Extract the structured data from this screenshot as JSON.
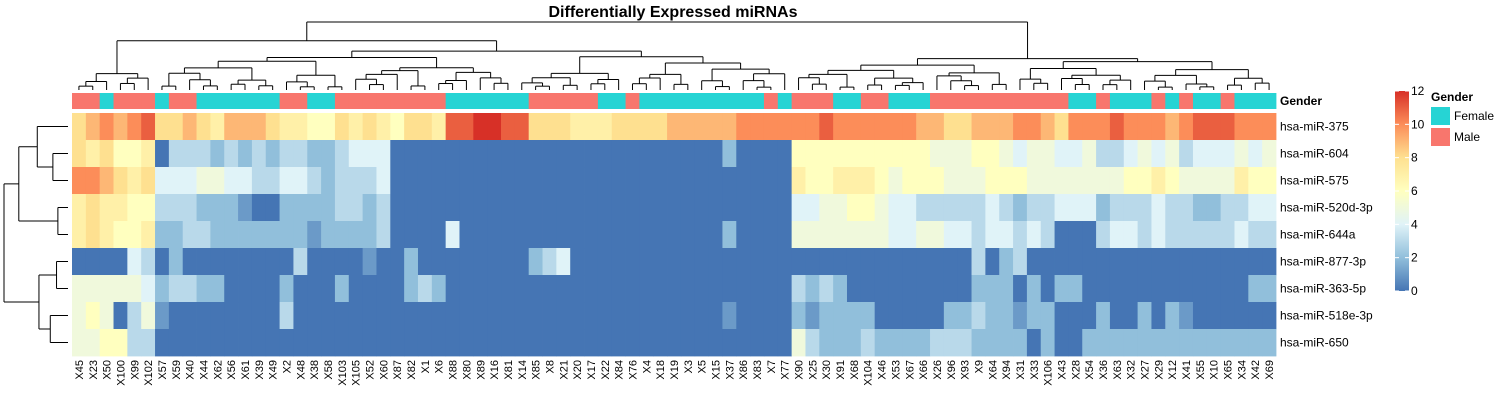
{
  "chart_data": {
    "type": "heatmap",
    "title": "Differentially Expressed miRNAs",
    "columns": [
      "X45",
      "X23",
      "X50",
      "X100",
      "X99",
      "X102",
      "X57",
      "X59",
      "X40",
      "X44",
      "X62",
      "X56",
      "X61",
      "X39",
      "X49",
      "X2",
      "X48",
      "X38",
      "X58",
      "X103",
      "X105",
      "X52",
      "X60",
      "X87",
      "X82",
      "X1",
      "X6",
      "X88",
      "X80",
      "X89",
      "X16",
      "X81",
      "X14",
      "X85",
      "X8",
      "X21",
      "X20",
      "X17",
      "X22",
      "X84",
      "X76",
      "X4",
      "X18",
      "X19",
      "X3",
      "X5",
      "X15",
      "X37",
      "X86",
      "X83",
      "X7",
      "X77",
      "X90",
      "X25",
      "X30",
      "X91",
      "X68",
      "X104",
      "X46",
      "X53",
      "X67",
      "X66",
      "X26",
      "X96",
      "X93",
      "X9",
      "X64",
      "X94",
      "X31",
      "X33",
      "X106",
      "X43",
      "X28",
      "X54",
      "X36",
      "X63",
      "X32",
      "X27",
      "X29",
      "X12",
      "X41",
      "X55",
      "X10",
      "X65",
      "X34",
      "X42",
      "X69"
    ],
    "rows": [
      "hsa-miR-375",
      "hsa-miR-604",
      "hsa-miR-575",
      "hsa-miR-520d-3p",
      "hsa-miR-644a",
      "hsa-miR-877-3p",
      "hsa-miR-363-5p",
      "hsa-miR-518e-3p",
      "hsa-miR-650"
    ],
    "gender": [
      "Male",
      "Male",
      "Female",
      "Male",
      "Male",
      "Male",
      "Female",
      "Male",
      "Male",
      "Female",
      "Female",
      "Female",
      "Female",
      "Female",
      "Female",
      "Male",
      "Male",
      "Female",
      "Female",
      "Male",
      "Male",
      "Male",
      "Male",
      "Male",
      "Male",
      "Male",
      "Male",
      "Female",
      "Female",
      "Female",
      "Female",
      "Female",
      "Female",
      "Male",
      "Male",
      "Male",
      "Male",
      "Male",
      "Female",
      "Female",
      "Male",
      "Female",
      "Female",
      "Female",
      "Female",
      "Female",
      "Female",
      "Female",
      "Female",
      "Female",
      "Male",
      "Female",
      "Male",
      "Male",
      "Male",
      "Female",
      "Female",
      "Male",
      "Male",
      "Female",
      "Female",
      "Female",
      "Male",
      "Male",
      "Male",
      "Male",
      "Male",
      "Male",
      "Male",
      "Male",
      "Male",
      "Male",
      "Female",
      "Female",
      "Male",
      "Female",
      "Female",
      "Female",
      "Male",
      "Female",
      "Male",
      "Female",
      "Female",
      "Male",
      "Female",
      "Female",
      "Female"
    ],
    "values": [
      [
        8,
        9,
        10,
        9,
        10,
        11,
        8,
        8,
        9,
        8,
        7,
        9,
        9,
        9,
        8,
        7,
        7,
        6,
        6,
        8,
        7,
        8,
        7,
        6,
        8,
        8,
        7,
        11,
        11,
        12,
        12,
        11,
        11,
        8,
        8,
        8,
        7,
        7,
        7,
        8,
        8,
        8,
        8,
        9,
        9,
        9,
        9,
        9,
        10,
        10,
        10,
        10,
        10,
        10,
        11,
        10,
        10,
        10,
        10,
        10,
        10,
        9,
        9,
        8,
        8,
        9,
        9,
        9,
        10,
        10,
        9,
        8,
        10,
        10,
        10,
        11,
        10,
        10,
        10,
        9,
        10,
        11,
        11,
        11,
        10,
        10,
        10
      ],
      [
        8,
        7,
        8,
        6,
        6,
        7,
        0,
        3,
        3,
        3,
        2,
        3,
        2,
        3,
        2,
        3,
        3,
        2,
        2,
        3,
        4,
        4,
        4,
        0,
        0,
        0,
        0,
        0,
        0,
        0,
        0,
        0,
        0,
        0,
        0,
        0,
        0,
        0,
        0,
        0,
        0,
        0,
        0,
        0,
        0,
        0,
        0,
        2,
        0,
        0,
        0,
        0,
        6,
        6,
        6,
        6,
        6,
        6,
        6,
        6,
        6,
        6,
        5,
        5,
        5,
        6,
        6,
        5,
        4,
        5,
        5,
        4,
        4,
        5,
        3,
        3,
        4,
        5,
        4,
        5,
        3,
        4,
        4,
        4,
        5,
        4,
        5
      ],
      [
        10,
        10,
        9,
        8,
        7,
        8,
        4,
        4,
        4,
        5,
        5,
        4,
        4,
        3,
        3,
        4,
        4,
        3,
        2,
        3,
        3,
        3,
        4,
        0,
        0,
        0,
        0,
        0,
        0,
        0,
        0,
        0,
        0,
        0,
        0,
        0,
        0,
        0,
        0,
        0,
        0,
        0,
        0,
        0,
        0,
        0,
        0,
        0,
        0,
        0,
        0,
        0,
        7,
        6,
        6,
        7,
        7,
        7,
        6,
        5,
        6,
        6,
        6,
        5,
        5,
        5,
        6,
        6,
        6,
        5,
        5,
        5,
        5,
        5,
        5,
        5,
        6,
        6,
        7,
        6,
        5,
        5,
        5,
        5,
        7,
        6,
        6
      ],
      [
        7,
        8,
        7,
        7,
        6,
        6,
        3,
        3,
        3,
        2,
        2,
        2,
        1,
        0,
        0,
        2,
        2,
        2,
        2,
        3,
        3,
        2,
        3,
        0,
        0,
        0,
        0,
        0,
        0,
        0,
        0,
        0,
        0,
        0,
        0,
        0,
        0,
        0,
        0,
        0,
        0,
        0,
        0,
        0,
        0,
        0,
        0,
        0,
        0,
        0,
        0,
        0,
        4,
        4,
        5,
        5,
        6,
        6,
        5,
        4,
        4,
        3,
        3,
        3,
        3,
        3,
        4,
        3,
        2,
        3,
        3,
        4,
        4,
        4,
        2,
        3,
        3,
        3,
        4,
        3,
        3,
        2,
        2,
        3,
        3,
        4,
        4
      ],
      [
        7,
        8,
        7,
        6,
        6,
        7,
        2,
        2,
        3,
        3,
        2,
        2,
        2,
        2,
        2,
        2,
        2,
        1,
        2,
        2,
        2,
        2,
        3,
        0,
        0,
        0,
        0,
        4,
        0,
        0,
        0,
        0,
        0,
        0,
        0,
        0,
        0,
        0,
        0,
        0,
        0,
        0,
        0,
        0,
        0,
        0,
        0,
        2,
        0,
        0,
        0,
        0,
        5,
        5,
        5,
        5,
        5,
        5,
        5,
        4,
        4,
        5,
        5,
        4,
        4,
        3,
        4,
        4,
        3,
        4,
        3,
        0,
        0,
        0,
        3,
        4,
        4,
        3,
        4,
        3,
        3,
        3,
        3,
        3,
        4,
        3,
        3
      ],
      [
        0,
        0,
        0,
        0,
        4,
        3,
        0,
        2,
        0,
        0,
        0,
        0,
        0,
        0,
        0,
        0,
        3,
        0,
        0,
        0,
        0,
        1,
        0,
        0,
        2,
        0,
        0,
        0,
        0,
        0,
        0,
        0,
        0,
        2,
        3,
        4,
        0,
        0,
        0,
        0,
        0,
        0,
        0,
        0,
        0,
        0,
        0,
        0,
        0,
        0,
        0,
        0,
        0,
        0,
        0,
        0,
        0,
        0,
        0,
        0,
        0,
        0,
        0,
        0,
        0,
        3,
        0,
        2,
        3,
        0,
        0,
        0,
        0,
        0,
        0,
        0,
        0,
        0,
        0,
        0,
        0,
        0,
        0,
        0,
        0,
        0,
        0
      ],
      [
        5,
        5,
        5,
        5,
        5,
        4,
        2,
        3,
        3,
        2,
        2,
        0,
        0,
        0,
        0,
        2,
        0,
        0,
        0,
        2,
        0,
        0,
        0,
        0,
        2,
        3,
        2,
        0,
        0,
        0,
        0,
        0,
        0,
        0,
        0,
        0,
        0,
        0,
        0,
        0,
        0,
        0,
        0,
        0,
        0,
        0,
        0,
        0,
        0,
        0,
        0,
        0,
        3,
        2,
        3,
        2,
        0,
        0,
        0,
        0,
        0,
        0,
        0,
        0,
        0,
        2,
        2,
        2,
        0,
        2,
        0,
        2,
        2,
        0,
        0,
        0,
        0,
        0,
        0,
        0,
        0,
        0,
        0,
        0,
        0,
        2,
        2
      ],
      [
        5,
        6,
        5,
        0,
        3,
        5,
        1,
        0,
        0,
        0,
        0,
        0,
        0,
        0,
        0,
        3,
        0,
        0,
        0,
        0,
        0,
        0,
        0,
        0,
        0,
        0,
        0,
        0,
        0,
        0,
        0,
        0,
        0,
        0,
        0,
        0,
        0,
        0,
        0,
        0,
        0,
        0,
        0,
        0,
        0,
        0,
        0,
        1,
        0,
        0,
        0,
        0,
        2,
        1,
        2,
        2,
        2,
        2,
        0,
        0,
        0,
        0,
        0,
        2,
        2,
        3,
        2,
        2,
        1,
        2,
        2,
        0,
        0,
        0,
        2,
        0,
        0,
        2,
        0,
        2,
        1,
        0,
        0,
        0,
        0,
        0,
        0
      ],
      [
        5,
        5,
        6,
        6,
        3,
        3,
        0,
        0,
        0,
        0,
        0,
        0,
        0,
        0,
        0,
        0,
        0,
        0,
        0,
        0,
        0,
        0,
        0,
        0,
        0,
        0,
        0,
        0,
        0,
        0,
        0,
        0,
        0,
        0,
        0,
        0,
        0,
        0,
        0,
        0,
        0,
        0,
        0,
        0,
        0,
        0,
        0,
        0,
        0,
        0,
        0,
        0,
        5,
        3,
        2,
        2,
        2,
        3,
        2,
        2,
        2,
        2,
        3,
        3,
        3,
        2,
        2,
        2,
        2,
        0,
        2,
        0,
        0,
        2,
        2,
        2,
        2,
        2,
        2,
        2,
        2,
        2,
        2,
        2,
        2,
        2,
        2
      ]
    ],
    "value_range": [
      0,
      12
    ],
    "colorbar_ticks": [
      0,
      2,
      4,
      6,
      8,
      10,
      12
    ],
    "color_scale": [
      "#4575b4",
      "#91bfdb",
      "#e0f3f8",
      "#ffffbf",
      "#fee090",
      "#fc8d59",
      "#d73027"
    ],
    "annotation": {
      "name": "Gender",
      "levels": [
        {
          "label": "Female",
          "color": "#26d4d4"
        },
        {
          "label": "Male",
          "color": "#f8766d"
        }
      ]
    },
    "legend_placement": "right",
    "dendrograms": [
      "columns",
      "rows"
    ]
  }
}
